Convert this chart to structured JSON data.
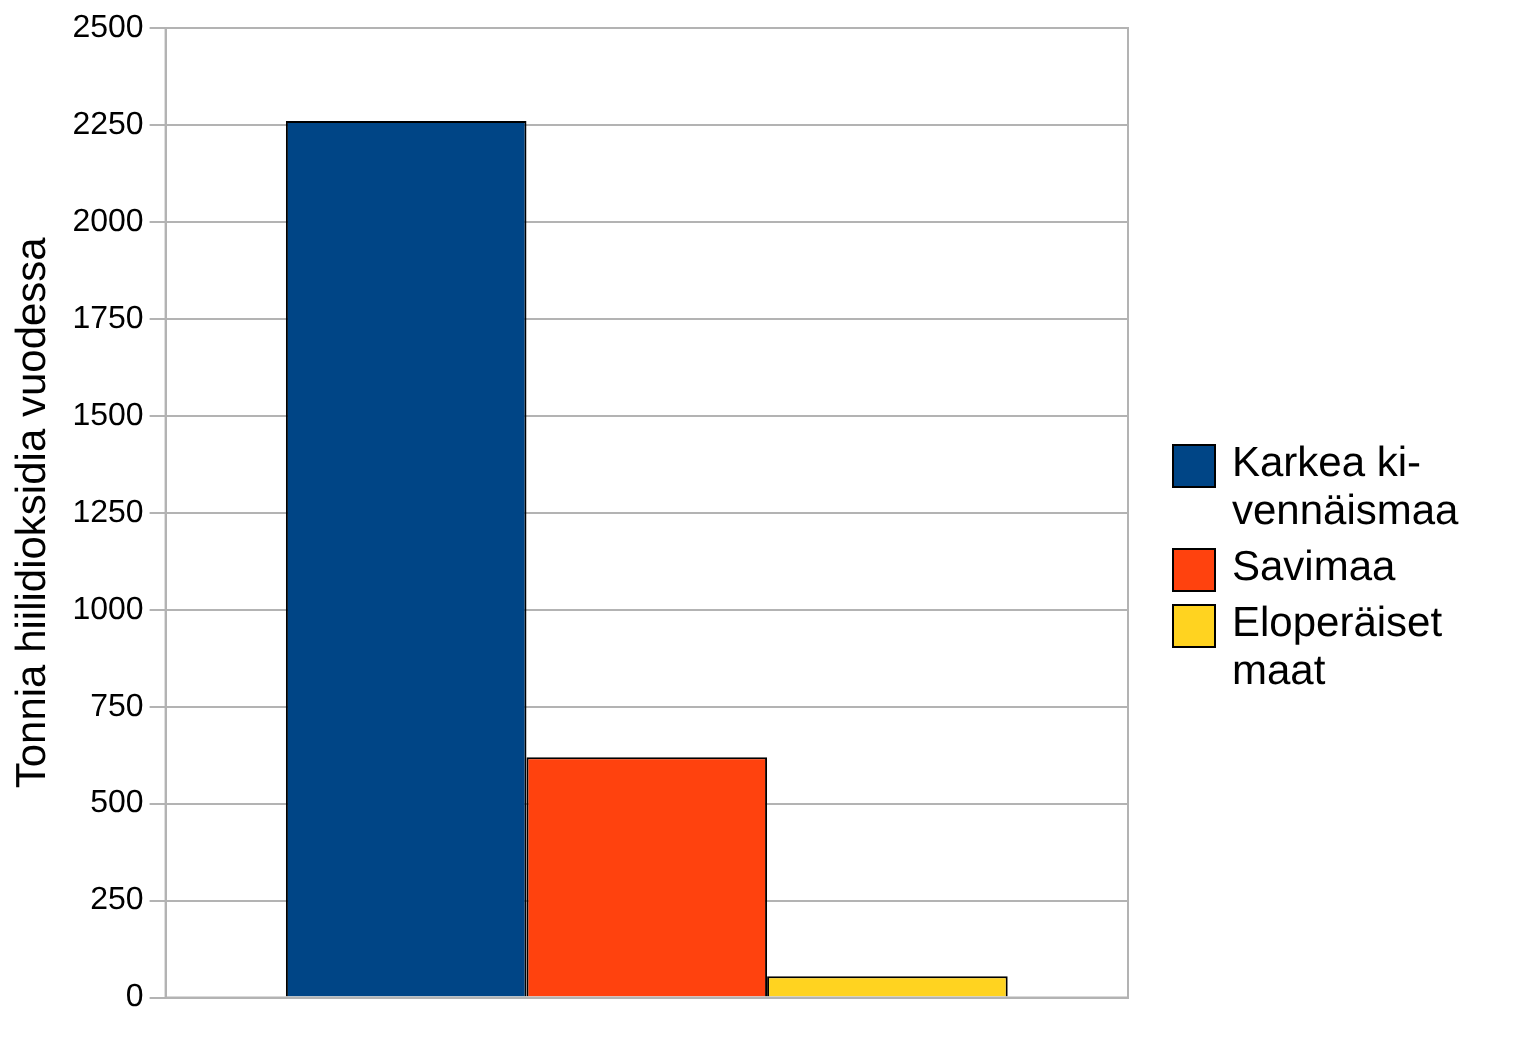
{
  "chart_data": {
    "type": "bar",
    "ylabel": "Tonnia hiilidioksidia vuodessa",
    "categories": [
      null
    ],
    "series": [
      {
        "name": "Karkea ki-vennäismaa",
        "color": "#004586",
        "values": [
          2260
        ]
      },
      {
        "name": "Savimaa",
        "color": "#ff420e",
        "values": [
          620
        ]
      },
      {
        "name": "Eloperäiset maat",
        "color": "#ffd320",
        "values": [
          55
        ]
      }
    ],
    "ylim": [
      0,
      2500
    ],
    "yticks": [
      0,
      250,
      500,
      750,
      1000,
      1250,
      1500,
      1750,
      2000,
      2250,
      2500
    ],
    "grid": "y",
    "legend": "right"
  }
}
